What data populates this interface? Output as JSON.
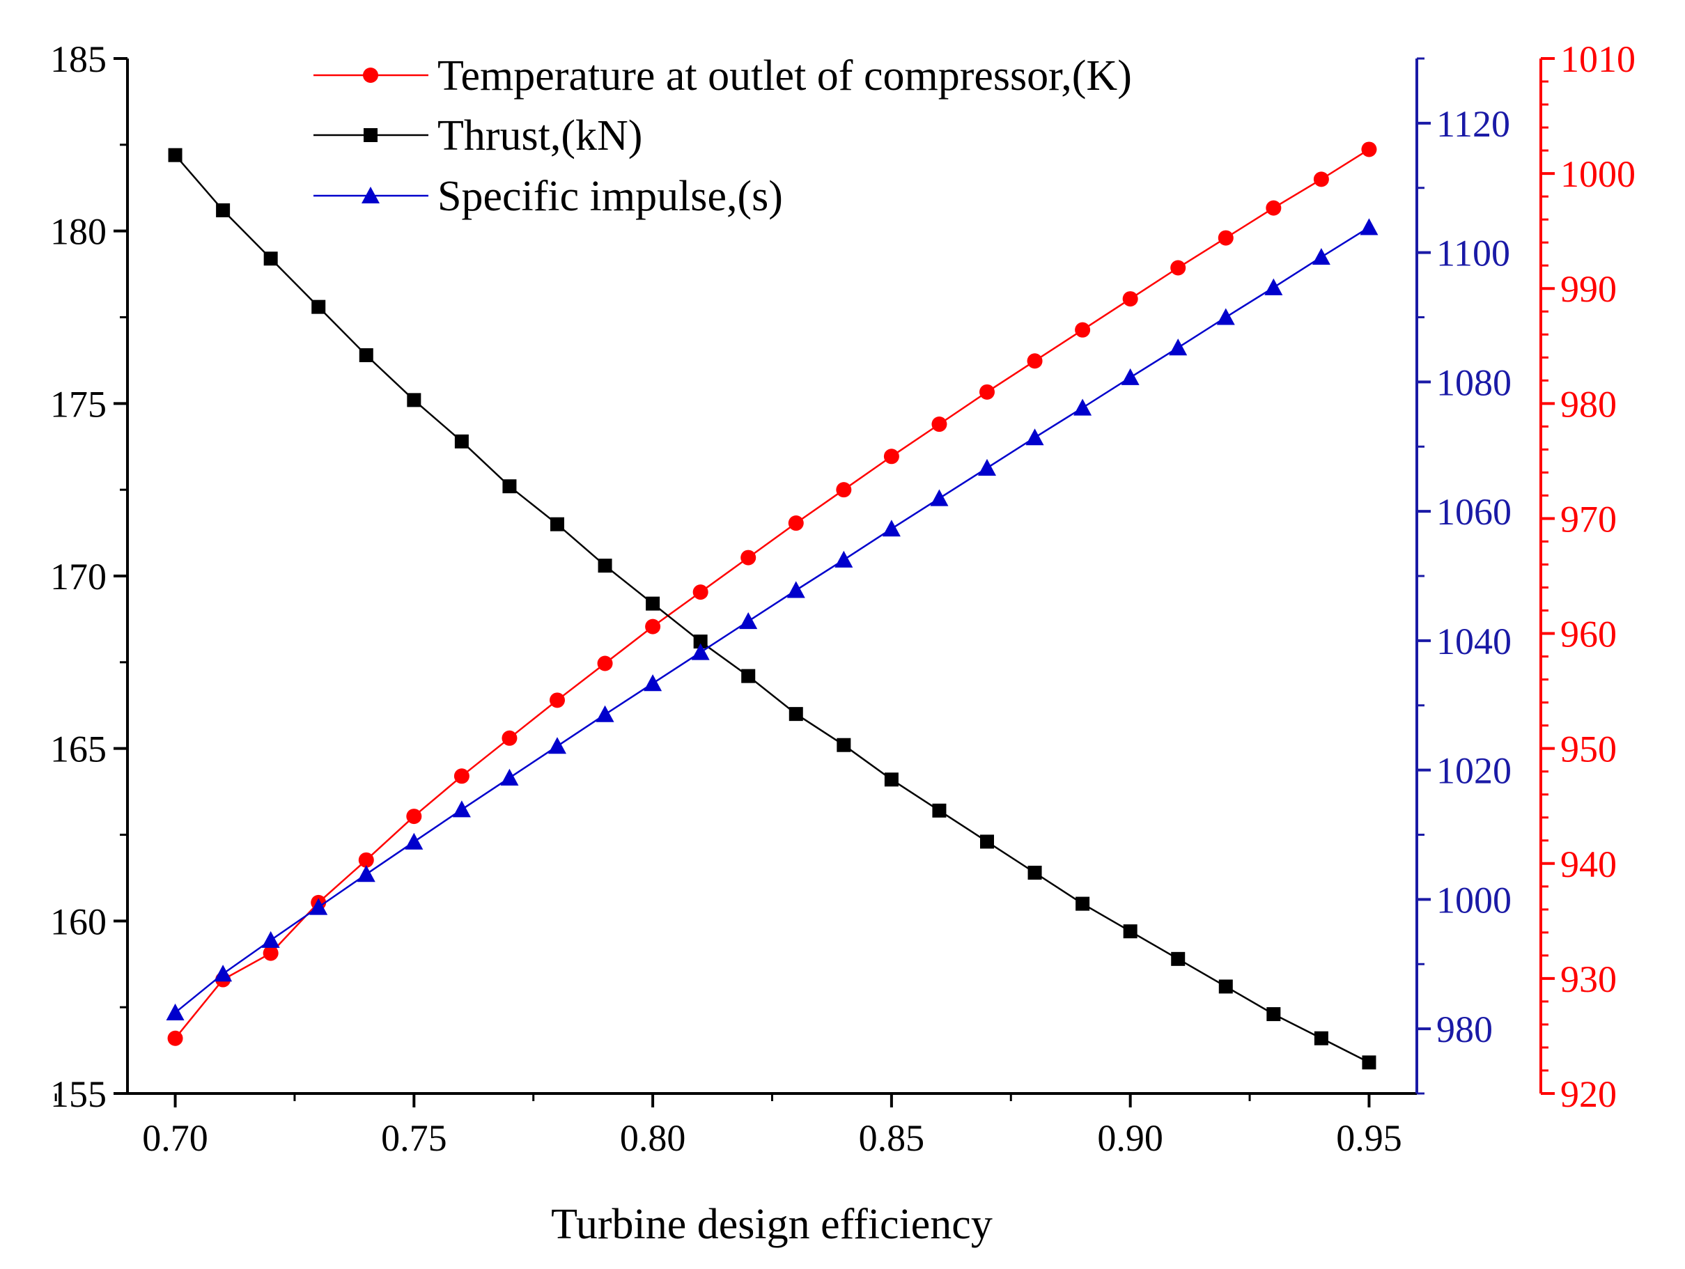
{
  "chart_data": {
    "type": "line",
    "xlabel": "Turbine design efficiency",
    "x": [
      0.7,
      0.71,
      0.72,
      0.73,
      0.74,
      0.75,
      0.76,
      0.77,
      0.78,
      0.79,
      0.8,
      0.81,
      0.82,
      0.83,
      0.84,
      0.85,
      0.86,
      0.87,
      0.88,
      0.89,
      0.9,
      0.91,
      0.92,
      0.93,
      0.94,
      0.95
    ],
    "xlim": [
      0.69,
      0.96
    ],
    "xticks": [
      "0.70",
      "0.75",
      "0.80",
      "0.85",
      "0.90",
      "0.95"
    ],
    "grid": false,
    "legend_position": "top-center",
    "axes": {
      "left": {
        "ylim": [
          155,
          185
        ],
        "ticks": [
          "155",
          "160",
          "165",
          "170",
          "175",
          "180",
          "185"
        ],
        "color": "#000000"
      },
      "right_inner": {
        "ylim": [
          970,
          1130
        ],
        "ticks": [
          "980",
          "1000",
          "1020",
          "1040",
          "1060",
          "1080",
          "1100",
          "1120"
        ],
        "color": "#1a1aa6"
      },
      "right_outer": {
        "ylim": [
          920,
          1010
        ],
        "ticks": [
          "920",
          "930",
          "940",
          "950",
          "960",
          "970",
          "980",
          "990",
          "1000",
          "1010"
        ],
        "color": "#ff0000"
      }
    },
    "series": [
      {
        "name": "Temperature at outlet of compressor,(K)",
        "axis": "right_outer",
        "color": "#ff0000",
        "marker": "circle",
        "values": [
          924.8,
          929.9,
          932.2,
          936.6,
          940.3,
          944.1,
          947.6,
          950.9,
          954.2,
          957.4,
          960.6,
          963.6,
          966.6,
          969.6,
          972.5,
          975.4,
          978.2,
          981.0,
          983.7,
          986.4,
          989.1,
          991.8,
          994.4,
          997.0,
          999.5,
          1002.1
        ]
      },
      {
        "name": "Thrust,(kN)",
        "axis": "left",
        "color": "#000000",
        "marker": "square",
        "values": [
          182.2,
          180.6,
          179.2,
          177.8,
          176.4,
          175.1,
          173.9,
          172.6,
          171.5,
          170.3,
          169.2,
          168.1,
          167.1,
          166.0,
          165.1,
          164.1,
          163.2,
          162.3,
          161.4,
          160.5,
          159.7,
          158.9,
          158.1,
          157.3,
          156.6,
          155.9
        ]
      },
      {
        "name": "Specific impulse,(s)",
        "axis": "right_inner",
        "color": "#0000cc",
        "marker": "triangle",
        "values": [
          982.5,
          988.5,
          993.7,
          998.8,
          1003.9,
          1008.9,
          1013.9,
          1018.8,
          1023.7,
          1028.6,
          1033.4,
          1038.2,
          1043.0,
          1047.8,
          1052.5,
          1057.3,
          1062.0,
          1066.7,
          1071.4,
          1076.0,
          1080.7,
          1085.3,
          1090.0,
          1094.6,
          1099.3,
          1103.9
        ]
      }
    ]
  }
}
